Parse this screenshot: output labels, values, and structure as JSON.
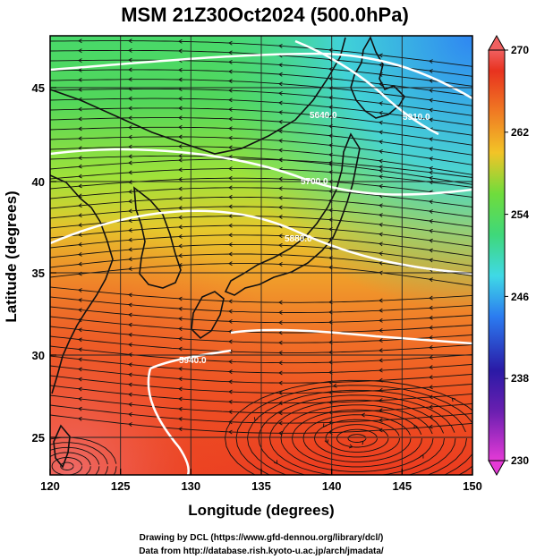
{
  "title": "MSM 21Z30Oct2024 (500.0hPa)",
  "xlabel": "Longitude (degrees)",
  "ylabel": "Latitude  (degrees)",
  "x_ticks": [
    "120",
    "125",
    "130",
    "135",
    "140",
    "145",
    "150"
  ],
  "y_ticks": [
    "25",
    "30",
    "35",
    "40",
    "45"
  ],
  "colorbar": {
    "ticks": [
      "270",
      "262",
      "254",
      "246",
      "238",
      "230"
    ],
    "range": [
      230,
      270
    ],
    "colors": [
      "#e43ad6",
      "#2a1aa6",
      "#2b7bf0",
      "#3fd9e6",
      "#47d34a",
      "#b5e538",
      "#f2c427",
      "#f07a23",
      "#e8321f",
      "#f06060"
    ]
  },
  "contour_labels": [
    "5940.0",
    "5880.0",
    "5700.0",
    "5640.0",
    "5910.0"
  ],
  "credits": {
    "line1": "Drawing by DCL (https://www.gfd-dennou.org/library/dcl/)",
    "line2": "Data from http://database.rish.kyoto-u.ac.jp/arch/jmadata/"
  },
  "chart_data": {
    "type": "heatmap",
    "title": "MSM 21Z30Oct2024 (500.0hPa)",
    "xlabel": "Longitude (degrees)",
    "ylabel": "Latitude  (degrees)",
    "xlim": [
      120,
      150
    ],
    "ylim": [
      22.4,
      47.6
    ],
    "colorbar_range": [
      230,
      270
    ],
    "field": "temperature (shaded), geopotential height (white contours), wind (streamlines)",
    "contours": [
      {
        "label": "5940.0",
        "lon": 131,
        "lat": 30.0
      },
      {
        "label": "5880.0",
        "lon": 138,
        "lat": 35.5
      },
      {
        "label": "5700.0",
        "lon": 140,
        "lat": 37.5
      },
      {
        "label": "5640.0",
        "lon": 143,
        "lat": 39.5
      },
      {
        "label": "5910.0",
        "lon": 145,
        "lat": 44.5
      }
    ],
    "cyclone_center": {
      "lon": 141.8,
      "lat": 24.5
    }
  }
}
